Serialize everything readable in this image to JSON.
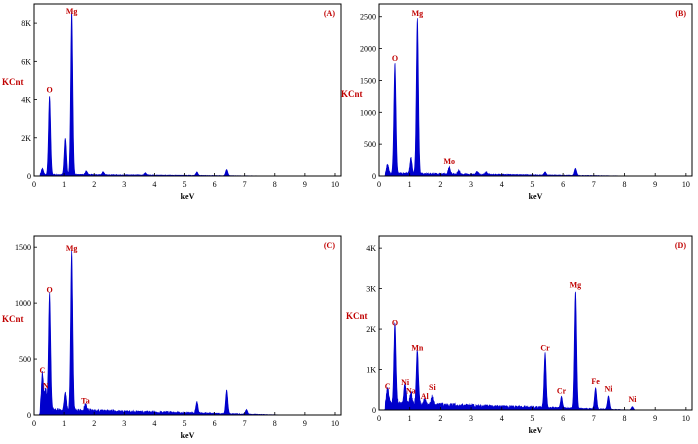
{
  "chart_data": [
    {
      "type": "line",
      "panel": "(A)",
      "xlabel": "keV",
      "ylabel": "KCnt",
      "xlim": [
        0,
        10.2
      ],
      "ylim": [
        0,
        9000
      ],
      "xticks": [
        0,
        1,
        2,
        3,
        4,
        5,
        6,
        7,
        8,
        9,
        10
      ],
      "yticks": [
        {
          "v": 0,
          "t": "0"
        },
        {
          "v": 2000,
          "t": "2K"
        },
        {
          "v": 4000,
          "t": "4K"
        },
        {
          "v": 6000,
          "t": "6K"
        },
        {
          "v": 8000,
          "t": "8K"
        }
      ],
      "peaks": [
        [
          0.28,
          300
        ],
        [
          0.52,
          4100
        ],
        [
          1.04,
          1900
        ],
        [
          1.25,
          8600
        ],
        [
          1.74,
          200
        ],
        [
          2.3,
          150
        ],
        [
          3.7,
          120
        ],
        [
          5.41,
          180
        ],
        [
          6.4,
          320
        ]
      ],
      "background": 60,
      "labels": [
        {
          "text": "O",
          "x": 0.52,
          "y": 4100
        },
        {
          "text": "Mg",
          "x": 1.25,
          "y": 8600
        }
      ],
      "color": "#0000cc"
    },
    {
      "type": "line",
      "panel": "(B)",
      "xlabel": "keV",
      "ylabel": "KCnt",
      "xlim": [
        0,
        10.2
      ],
      "ylim": [
        0,
        2700
      ],
      "xticks": [
        0,
        1,
        2,
        3,
        4,
        5,
        6,
        7,
        8,
        9,
        10
      ],
      "yticks": [
        {
          "v": 0,
          "t": "0"
        },
        {
          "v": 500,
          "t": "500"
        },
        {
          "v": 1000,
          "t": "1000"
        },
        {
          "v": 1500,
          "t": "1500"
        },
        {
          "v": 2000,
          "t": "2000"
        },
        {
          "v": 2500,
          "t": "2500"
        }
      ],
      "peaks": [
        [
          0.28,
          150
        ],
        [
          0.52,
          1730
        ],
        [
          1.04,
          250
        ],
        [
          1.25,
          2430
        ],
        [
          2.29,
          110
        ],
        [
          2.6,
          60
        ],
        [
          3.2,
          50
        ],
        [
          3.5,
          40
        ],
        [
          5.41,
          50
        ],
        [
          6.4,
          110
        ]
      ],
      "background": 30,
      "labels": [
        {
          "text": "O",
          "x": 0.52,
          "y": 1730
        },
        {
          "text": "Mg",
          "x": 1.25,
          "y": 2430
        },
        {
          "text": "Mo",
          "x": 2.29,
          "y": 110
        }
      ],
      "color": "#0000cc"
    },
    {
      "type": "line",
      "panel": "(C)",
      "xlabel": "keV",
      "ylabel": "KCnt",
      "xlim": [
        0,
        10.2
      ],
      "ylim": [
        0,
        1600
      ],
      "xticks": [
        0,
        1,
        2,
        3,
        4,
        5,
        6,
        7,
        8,
        9,
        10
      ],
      "yticks": [
        {
          "v": 0,
          "t": "0"
        },
        {
          "v": 500,
          "t": "500"
        },
        {
          "v": 1000,
          "t": "1000"
        },
        {
          "v": 1500,
          "t": "1500"
        }
      ],
      "peaks": [
        [
          0.28,
          330
        ],
        [
          0.39,
          190
        ],
        [
          0.52,
          1050
        ],
        [
          1.04,
          160
        ],
        [
          1.25,
          1420
        ],
        [
          1.71,
          60
        ],
        [
          5.41,
          100
        ],
        [
          6.4,
          210
        ],
        [
          7.06,
          40
        ]
      ],
      "background": 35,
      "labels": [
        {
          "text": "C",
          "x": 0.28,
          "y": 330
        },
        {
          "text": "N",
          "x": 0.39,
          "y": 190
        },
        {
          "text": "O",
          "x": 0.52,
          "y": 1050
        },
        {
          "text": "Mg",
          "x": 1.25,
          "y": 1420
        },
        {
          "text": "Ta",
          "x": 1.71,
          "y": 60
        }
      ],
      "color": "#0000cc"
    },
    {
      "type": "line",
      "panel": "(D)",
      "xlabel": "keV",
      "ylabel": "KCnt",
      "xlim": [
        0,
        10.2
      ],
      "ylim": [
        0,
        4300
      ],
      "xticks": [
        0,
        1,
        2,
        3,
        4,
        5,
        6,
        7,
        8,
        9,
        10
      ],
      "yticks": [
        {
          "v": 0,
          "t": "0"
        },
        {
          "v": 1000,
          "t": "1K"
        },
        {
          "v": 2000,
          "t": "2K"
        },
        {
          "v": 3000,
          "t": "3K"
        },
        {
          "v": 4000,
          "t": "4K"
        }
      ],
      "peaks": [
        [
          0.28,
          400
        ],
        [
          0.52,
          1970
        ],
        [
          0.85,
          500
        ],
        [
          1.04,
          280
        ],
        [
          1.25,
          1350
        ],
        [
          1.49,
          150
        ],
        [
          1.74,
          200
        ],
        [
          5.41,
          1350
        ],
        [
          5.95,
          280
        ],
        [
          6.4,
          2900
        ],
        [
          7.06,
          520
        ],
        [
          7.48,
          330
        ],
        [
          8.26,
          80
        ]
      ],
      "background": 120,
      "labels": [
        {
          "text": "C",
          "x": 0.28,
          "y": 400
        },
        {
          "text": "O",
          "x": 0.52,
          "y": 1970
        },
        {
          "text": "Ni",
          "x": 0.85,
          "y": 500
        },
        {
          "text": "Na",
          "x": 1.04,
          "y": 280
        },
        {
          "text": "Mn",
          "x": 1.25,
          "y": 1350
        },
        {
          "text": "Al",
          "x": 1.49,
          "y": 150
        },
        {
          "text": "Si",
          "x": 1.74,
          "y": 200
        },
        {
          "text": "Cr",
          "x": 5.41,
          "y": 1350
        },
        {
          "text": "Cr",
          "x": 5.95,
          "y": 280
        },
        {
          "text": "Mg",
          "x": 6.4,
          "y": 2900
        },
        {
          "text": "Fe",
          "x": 7.06,
          "y": 520
        },
        {
          "text": "Ni",
          "x": 7.48,
          "y": 330
        },
        {
          "text": "Ni",
          "x": 8.26,
          "y": 80
        }
      ],
      "color": "#0000cc"
    }
  ]
}
